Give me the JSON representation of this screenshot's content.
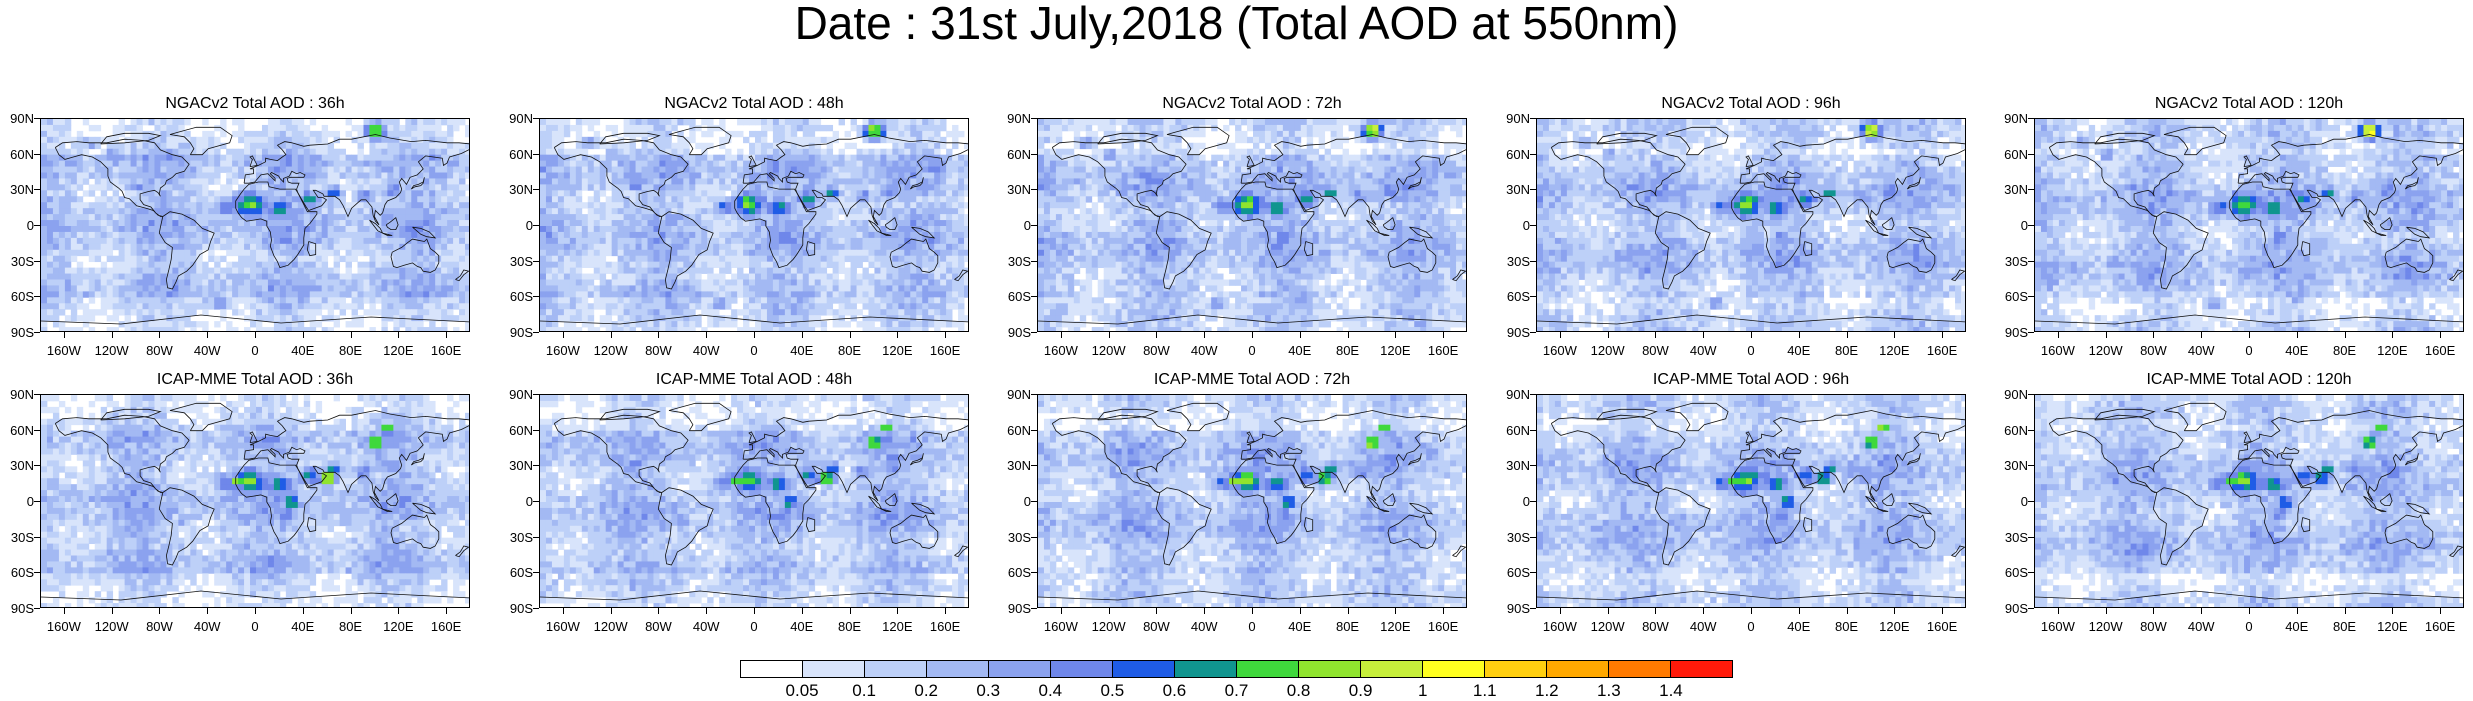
{
  "title": "Date : 31st July,2018 (Total AOD at 550nm)",
  "rows": [
    {
      "model": "NGACv2",
      "panels": [
        {
          "title": "NGACv2 Total AOD : 36h",
          "lead": "36h"
        },
        {
          "title": "NGACv2 Total AOD : 48h",
          "lead": "48h"
        },
        {
          "title": "NGACv2 Total AOD : 72h",
          "lead": "72h"
        },
        {
          "title": "NGACv2 Total AOD : 96h",
          "lead": "96h"
        },
        {
          "title": "NGACv2 Total AOD : 120h",
          "lead": "120h"
        }
      ]
    },
    {
      "model": "ICAP-MME",
      "panels": [
        {
          "title": "ICAP-MME Total AOD : 36h",
          "lead": "36h"
        },
        {
          "title": "ICAP-MME Total AOD : 48h",
          "lead": "48h"
        },
        {
          "title": "ICAP-MME Total AOD : 72h",
          "lead": "72h"
        },
        {
          "title": "ICAP-MME Total AOD : 96h",
          "lead": "96h"
        },
        {
          "title": "ICAP-MME Total AOD : 120h",
          "lead": "120h"
        }
      ]
    }
  ],
  "lat_labels": [
    "90N",
    "60N",
    "30N",
    "0",
    "30S",
    "60S",
    "90S"
  ],
  "lon_labels": [
    "160W",
    "120W",
    "80W",
    "40W",
    "0",
    "40E",
    "80E",
    "120E",
    "160E"
  ],
  "colorbar": {
    "labels": [
      "0.05",
      "0.1",
      "0.2",
      "0.3",
      "0.4",
      "0.5",
      "0.6",
      "0.7",
      "0.8",
      "0.9",
      "1",
      "1.1",
      "1.2",
      "1.3",
      "1.4"
    ],
    "colors": [
      "#ffffff",
      "#d8e4fb",
      "#bdd0f8",
      "#a3b9f3",
      "#8ba2ef",
      "#6f87ea",
      "#1f5ce6",
      "#10958f",
      "#3fd83c",
      "#90e42e",
      "#c7ef3b",
      "#ffff20",
      "#ffcf10",
      "#ffa800",
      "#ff7a00",
      "#ff1a0a"
    ]
  }
}
